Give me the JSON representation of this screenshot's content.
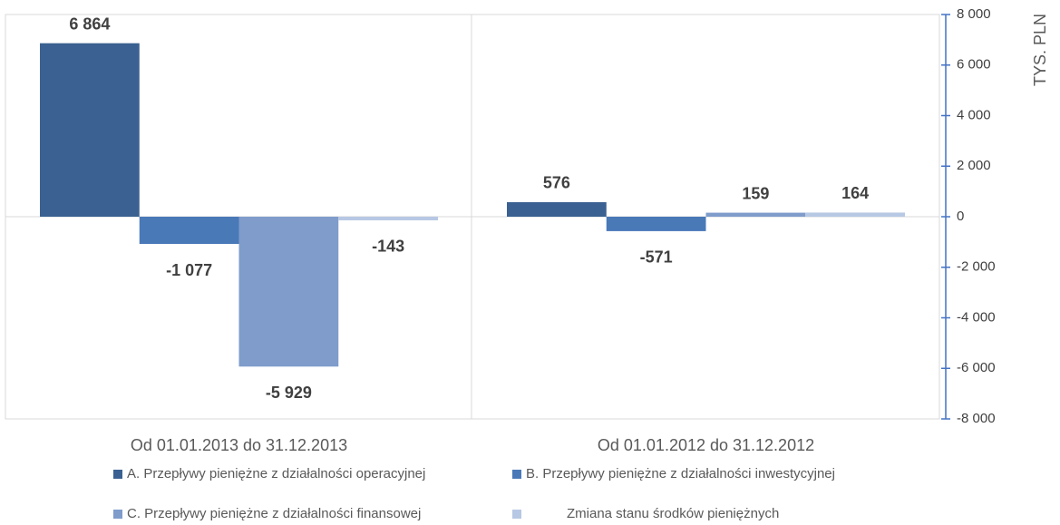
{
  "chart_data": {
    "type": "bar",
    "y_label": "TYS. PLN",
    "categories": [
      "Od 01.01.2013 do 31.12.2013",
      "Od 01.01.2012 do 31.12.2012"
    ],
    "series": [
      {
        "name": "A. Przepływy pieniężne z działalności operacyjnej",
        "color": "#3a6191",
        "values": [
          6864,
          576
        ],
        "value_labels": [
          "6 864",
          "576"
        ]
      },
      {
        "name": "B. Przepływy pieniężne z działalności inwestycyjnej",
        "color": "#4a79b8",
        "values": [
          -1077,
          -571
        ],
        "value_labels": [
          "-1 077",
          "-571"
        ]
      },
      {
        "name": "C. Przepływy pieniężne z działalności finansowej",
        "color": "#7f9ccb",
        "values": [
          -5929,
          159
        ],
        "value_labels": [
          "-5 929",
          "159"
        ]
      },
      {
        "name": "Zmiana stanu środków pieniężnych",
        "color": "#b7c8e4",
        "values": [
          -143,
          164
        ],
        "value_labels": [
          "-143",
          "164"
        ]
      }
    ],
    "ylim": [
      -8000,
      8000
    ],
    "yticks": [
      {
        "value": -8000,
        "label": "-8 000"
      },
      {
        "value": -6000,
        "label": "-6 000"
      },
      {
        "value": -4000,
        "label": "-4 000"
      },
      {
        "value": -2000,
        "label": "-2 000"
      },
      0,
      {
        "value": 2000,
        "label": "2 000"
      },
      {
        "value": 4000,
        "label": "4 000"
      },
      {
        "value": 6000,
        "label": "6 000"
      },
      {
        "value": 8000,
        "label": "8 000"
      }
    ],
    "y_axis_side": "right",
    "grid": false
  }
}
